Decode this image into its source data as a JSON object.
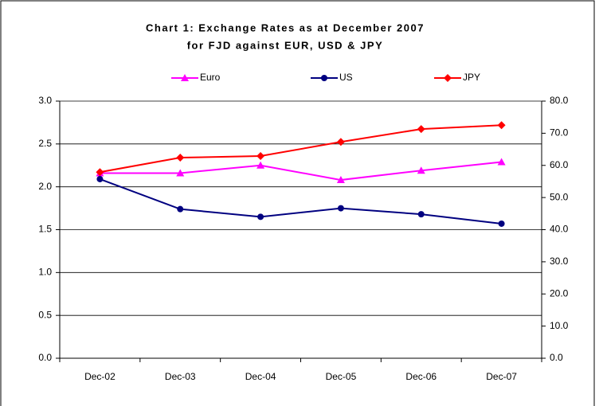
{
  "chart_data": {
    "type": "line",
    "title": [
      "Chart 1: Exchange Rates as at  December 2007",
      "for FJD against EUR, USD & JPY"
    ],
    "categories": [
      "Dec-02",
      "Dec-03",
      "Dec-04",
      "Dec-05",
      "Dec-06",
      "Dec-07"
    ],
    "series": [
      {
        "name": "Euro",
        "color": "#ff00ff",
        "marker": "triangle",
        "values": [
          2.16,
          2.16,
          2.25,
          2.08,
          2.19,
          2.29
        ]
      },
      {
        "name": "US",
        "color": "#000080",
        "marker": "circle",
        "values": [
          2.09,
          1.74,
          1.65,
          1.75,
          1.68,
          1.57
        ]
      },
      {
        "name": "JPY",
        "color": "#ff0000",
        "marker": "diamond",
        "axis": "y2",
        "values": [
          57.9,
          62.4,
          62.9,
          67.3,
          71.3,
          72.5
        ]
      }
    ],
    "ylim": [
      0,
      3
    ],
    "yticks": [
      {
        "value": 0,
        "label": "0.0"
      },
      {
        "value": 0.5,
        "label": "0.5"
      },
      {
        "value": 1,
        "label": "1.0"
      },
      {
        "value": 1.5,
        "label": "1.5"
      },
      {
        "value": 2,
        "label": "2.0"
      },
      {
        "value": 2.5,
        "label": "2.5"
      },
      {
        "value": 3,
        "label": "3.0"
      }
    ],
    "y2lim": [
      0,
      80
    ],
    "y2ticks": [
      {
        "value": 0,
        "label": "0.0"
      },
      {
        "value": 10,
        "label": "10.0"
      },
      {
        "value": 20,
        "label": "20.0"
      },
      {
        "value": 30,
        "label": "30.0"
      },
      {
        "value": 40,
        "label": "40.0"
      },
      {
        "value": 50,
        "label": "50.0"
      },
      {
        "value": 60,
        "label": "60.0"
      },
      {
        "value": 70,
        "label": "70.0"
      },
      {
        "value": 80,
        "label": "80.0"
      }
    ],
    "grid": true,
    "legend": "top"
  }
}
